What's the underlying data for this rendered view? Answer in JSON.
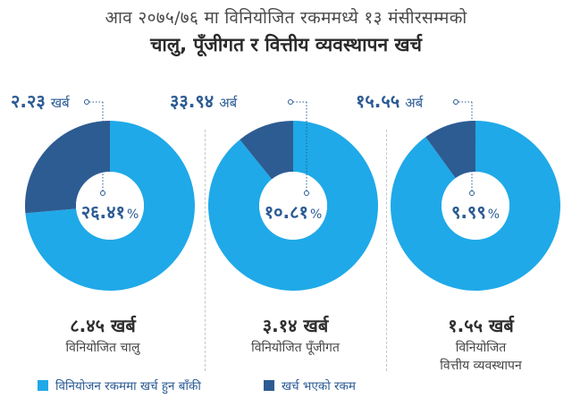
{
  "title": {
    "line1": "आव २०७५/७६ मा विनियोजित रकममध्ये १३ मंसीरसम्मको",
    "line2": "चालु, पूँजीगत र वित्तीय व्यवस्थापन खर्च"
  },
  "colors": {
    "remaining": "#1fa9e8",
    "spent": "#2d5c92"
  },
  "chart_data": {
    "type": "pie",
    "variant": "donut",
    "legend_position": "bottom",
    "legend": [
      {
        "label": "विनियोजन रकममा खर्च हुन बाँकी",
        "color": "#1fa9e8"
      },
      {
        "label": "खर्च भएको रकम",
        "color": "#2d5c92"
      }
    ],
    "charts": [
      {
        "spent_percent": 26.41,
        "remaining_percent": 73.59,
        "percent_label": {
          "main": "२६.४१",
          "unit": "%"
        },
        "spent_label": {
          "value": "२.२३",
          "unit": "खर्ब"
        },
        "allocation_label": "८.४५ खर्ब",
        "caption": [
          "विनियोजित चालु"
        ]
      },
      {
        "spent_percent": 10.81,
        "remaining_percent": 89.19,
        "percent_label": {
          "main": "१०.८१",
          "unit": "%"
        },
        "spent_label": {
          "value": "३३.९४",
          "unit": "अर्ब"
        },
        "allocation_label": "३.१४ खर्ब",
        "caption": [
          "विनियोजित पूँजीगत"
        ]
      },
      {
        "spent_percent": 9.99,
        "remaining_percent": 90.01,
        "percent_label": {
          "main": "९.९९",
          "unit": "%"
        },
        "spent_label": {
          "value": "१५.५५",
          "unit": "अर्ब"
        },
        "allocation_label": "१.५५ खर्ब",
        "caption": [
          "विनियोजित",
          "वित्तीय व्यवस्थापन"
        ]
      }
    ]
  }
}
